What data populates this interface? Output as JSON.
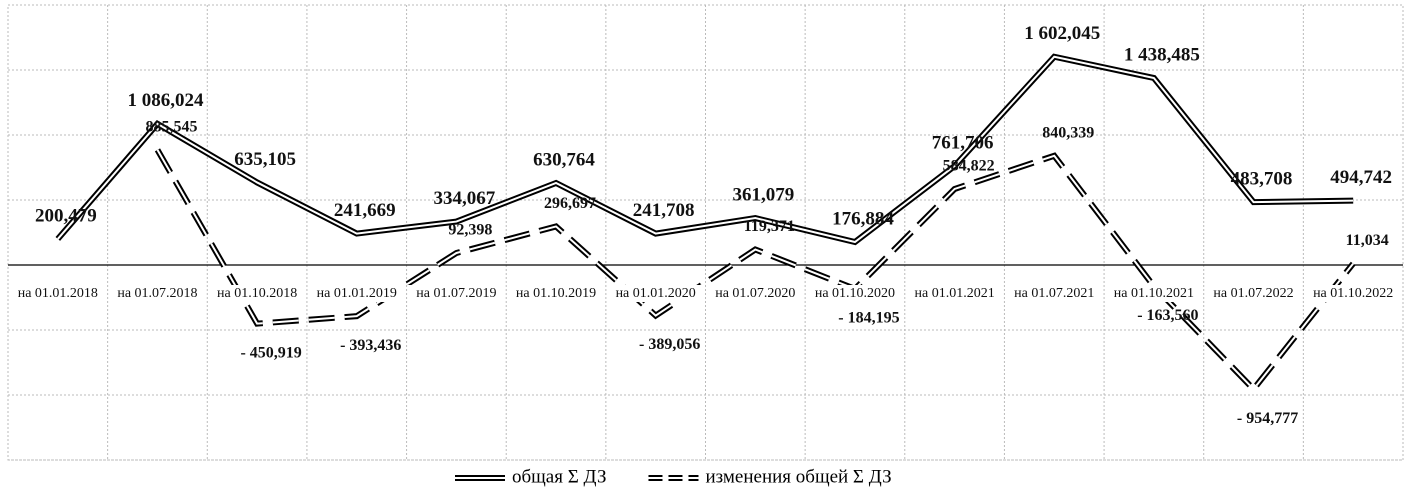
{
  "chart_data": {
    "type": "line",
    "categories": [
      "на 01.01.2018",
      "на 01.07.2018",
      "на 01.10.2018",
      "на 01.01.2019",
      "на 01.07.2019",
      "на 01.10.2019",
      "на 01.01.2020",
      "на 01.07.2020",
      "на 01.10.2020",
      "на 01.01.2021",
      "на 01.07.2021",
      "на 01.10.2021",
      "на 01.07.2022",
      "на 01.10.2022"
    ],
    "series": [
      {
        "name": "общая Σ ДЗ",
        "color": "#000000",
        "style": "double",
        "values": [
          200.479,
          1086.024,
          635.105,
          241.669,
          334.067,
          630.764,
          241.708,
          361.079,
          176.884,
          761.706,
          1602.045,
          1438.485,
          483.708,
          494.742
        ],
        "value_labels": [
          "200,479",
          "1 086,024",
          "635,105",
          "241,669",
          "334,067",
          "630,764",
          "241,708",
          "361,079",
          "176,884",
          "761,706",
          "1 602,045",
          "1 438,485",
          "483,708",
          "494,742"
        ]
      },
      {
        "name": "изменения общей Σ ДЗ",
        "color": "#000000",
        "style": "double-dashed",
        "values": [
          null,
          885.545,
          -450.919,
          -393.436,
          92.398,
          296.697,
          -389.056,
          119.371,
          -184.195,
          584.822,
          840.339,
          -163.56,
          -954.777,
          11.034
        ],
        "value_labels": [
          null,
          "885,545",
          "- 450,919",
          "- 393,436",
          "92,398",
          "296,697",
          "- 389,056",
          "119,371",
          "- 184,195",
          "584,822",
          "840,339",
          "- 163,560",
          "- 954,777",
          "11,034"
        ]
      }
    ],
    "ylim": [
      -1500,
      2000
    ],
    "yticks": [
      -1500,
      -1000,
      -500,
      0,
      500,
      1000,
      1500,
      2000
    ],
    "grid": true
  }
}
